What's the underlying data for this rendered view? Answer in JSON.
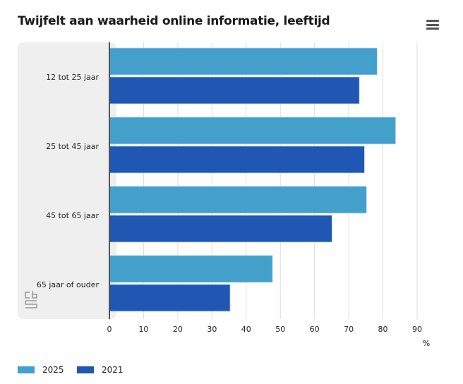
{
  "title": "Twijfelt aan waarheid online informatie, leeftijd",
  "menu_icon": "hamburger-menu-icon",
  "logo_text": "cbs",
  "chart_data": {
    "type": "bar",
    "orientation": "horizontal",
    "title": "Twijfelt aan waarheid online informatie, leeftijd",
    "categories": [
      "12 tot 25 jaar",
      "25 tot 45 jaar",
      "45 tot 65 jaar",
      "65 jaar of ouder"
    ],
    "series": [
      {
        "name": "2025",
        "color": "#42a0cb",
        "values": [
          78.3,
          83.7,
          75.2,
          47.7
        ]
      },
      {
        "name": "2021",
        "color": "#1f57b3",
        "values": [
          73.1,
          74.6,
          65.1,
          35.3
        ]
      }
    ],
    "xlim": [
      0,
      90
    ],
    "xticks": [
      "0",
      "10",
      "20",
      "30",
      "40",
      "50",
      "60",
      "70",
      "80",
      "90"
    ],
    "xunit": "%",
    "grid": true,
    "legend": "bottom-left"
  }
}
